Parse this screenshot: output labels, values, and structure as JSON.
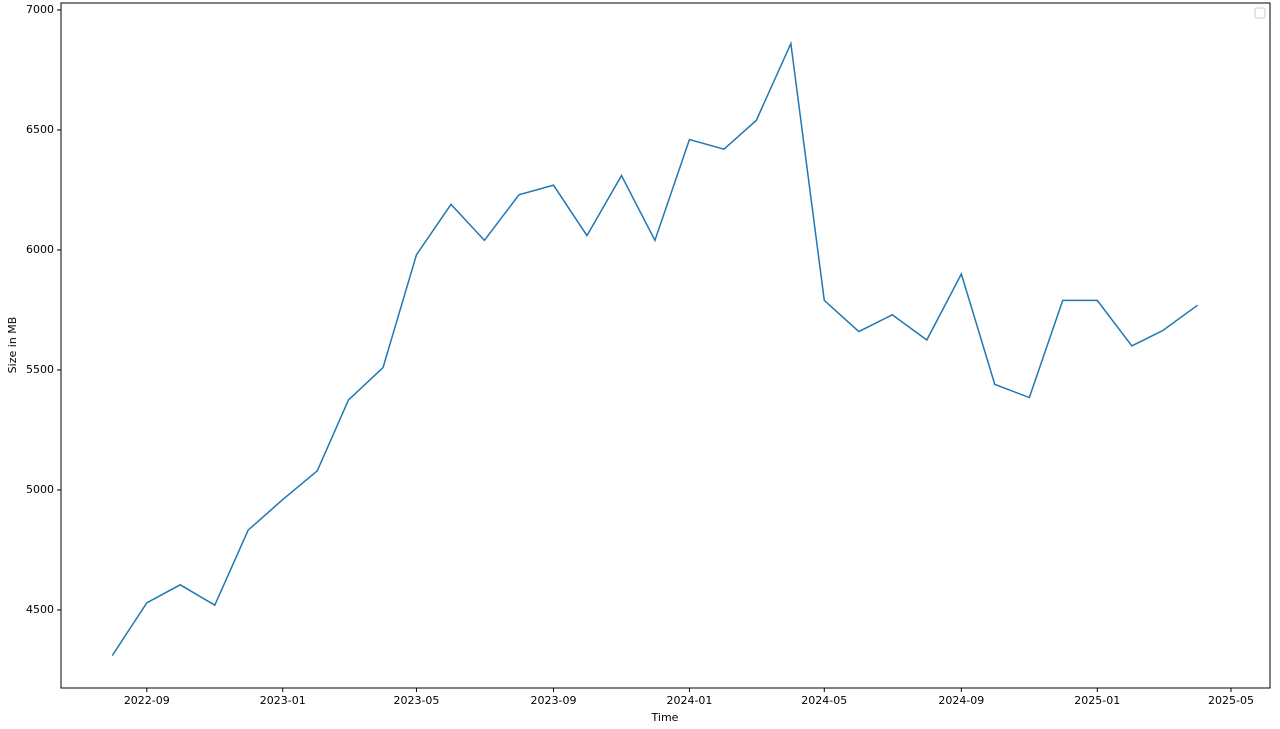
{
  "chart_data": {
    "type": "line",
    "xlabel": "Time",
    "ylabel": "Size in MB",
    "x": [
      "2022-08",
      "2022-09",
      "2022-10",
      "2022-11",
      "2022-12",
      "2023-01",
      "2023-02",
      "2023-03",
      "2023-04",
      "2023-05",
      "2023-06",
      "2023-07",
      "2023-08",
      "2023-09",
      "2023-10",
      "2023-11",
      "2023-12",
      "2024-01",
      "2024-02",
      "2024-03",
      "2024-04",
      "2024-05",
      "2024-06",
      "2024-07",
      "2024-08",
      "2024-09",
      "2024-10",
      "2024-11",
      "2024-12",
      "2025-01",
      "2025-02",
      "2025-03",
      "2025-04"
    ],
    "series": [
      {
        "color": "#1f77b4",
        "values": [
          4310,
          4530,
          4605,
          4520,
          4833,
          4960,
          5080,
          5375,
          5510,
          5980,
          6190,
          6040,
          6230,
          6270,
          6060,
          6310,
          6040,
          6460,
          6420,
          6540,
          6860,
          5790,
          5660,
          5730,
          5625,
          5900,
          5440,
          5385,
          5790,
          5790,
          5600,
          5665,
          5770
        ]
      }
    ],
    "xlim": [
      "2022-06-16",
      "2025-06-05"
    ],
    "xticks": [
      "2022-09",
      "2023-01",
      "2023-05",
      "2023-09",
      "2024-01",
      "2024-05",
      "2024-09",
      "2025-01",
      "2025-05"
    ],
    "ylim": [
      4175,
      7029
    ],
    "yticks": [
      4500,
      5000,
      5500,
      6000,
      6500,
      7000
    ]
  }
}
